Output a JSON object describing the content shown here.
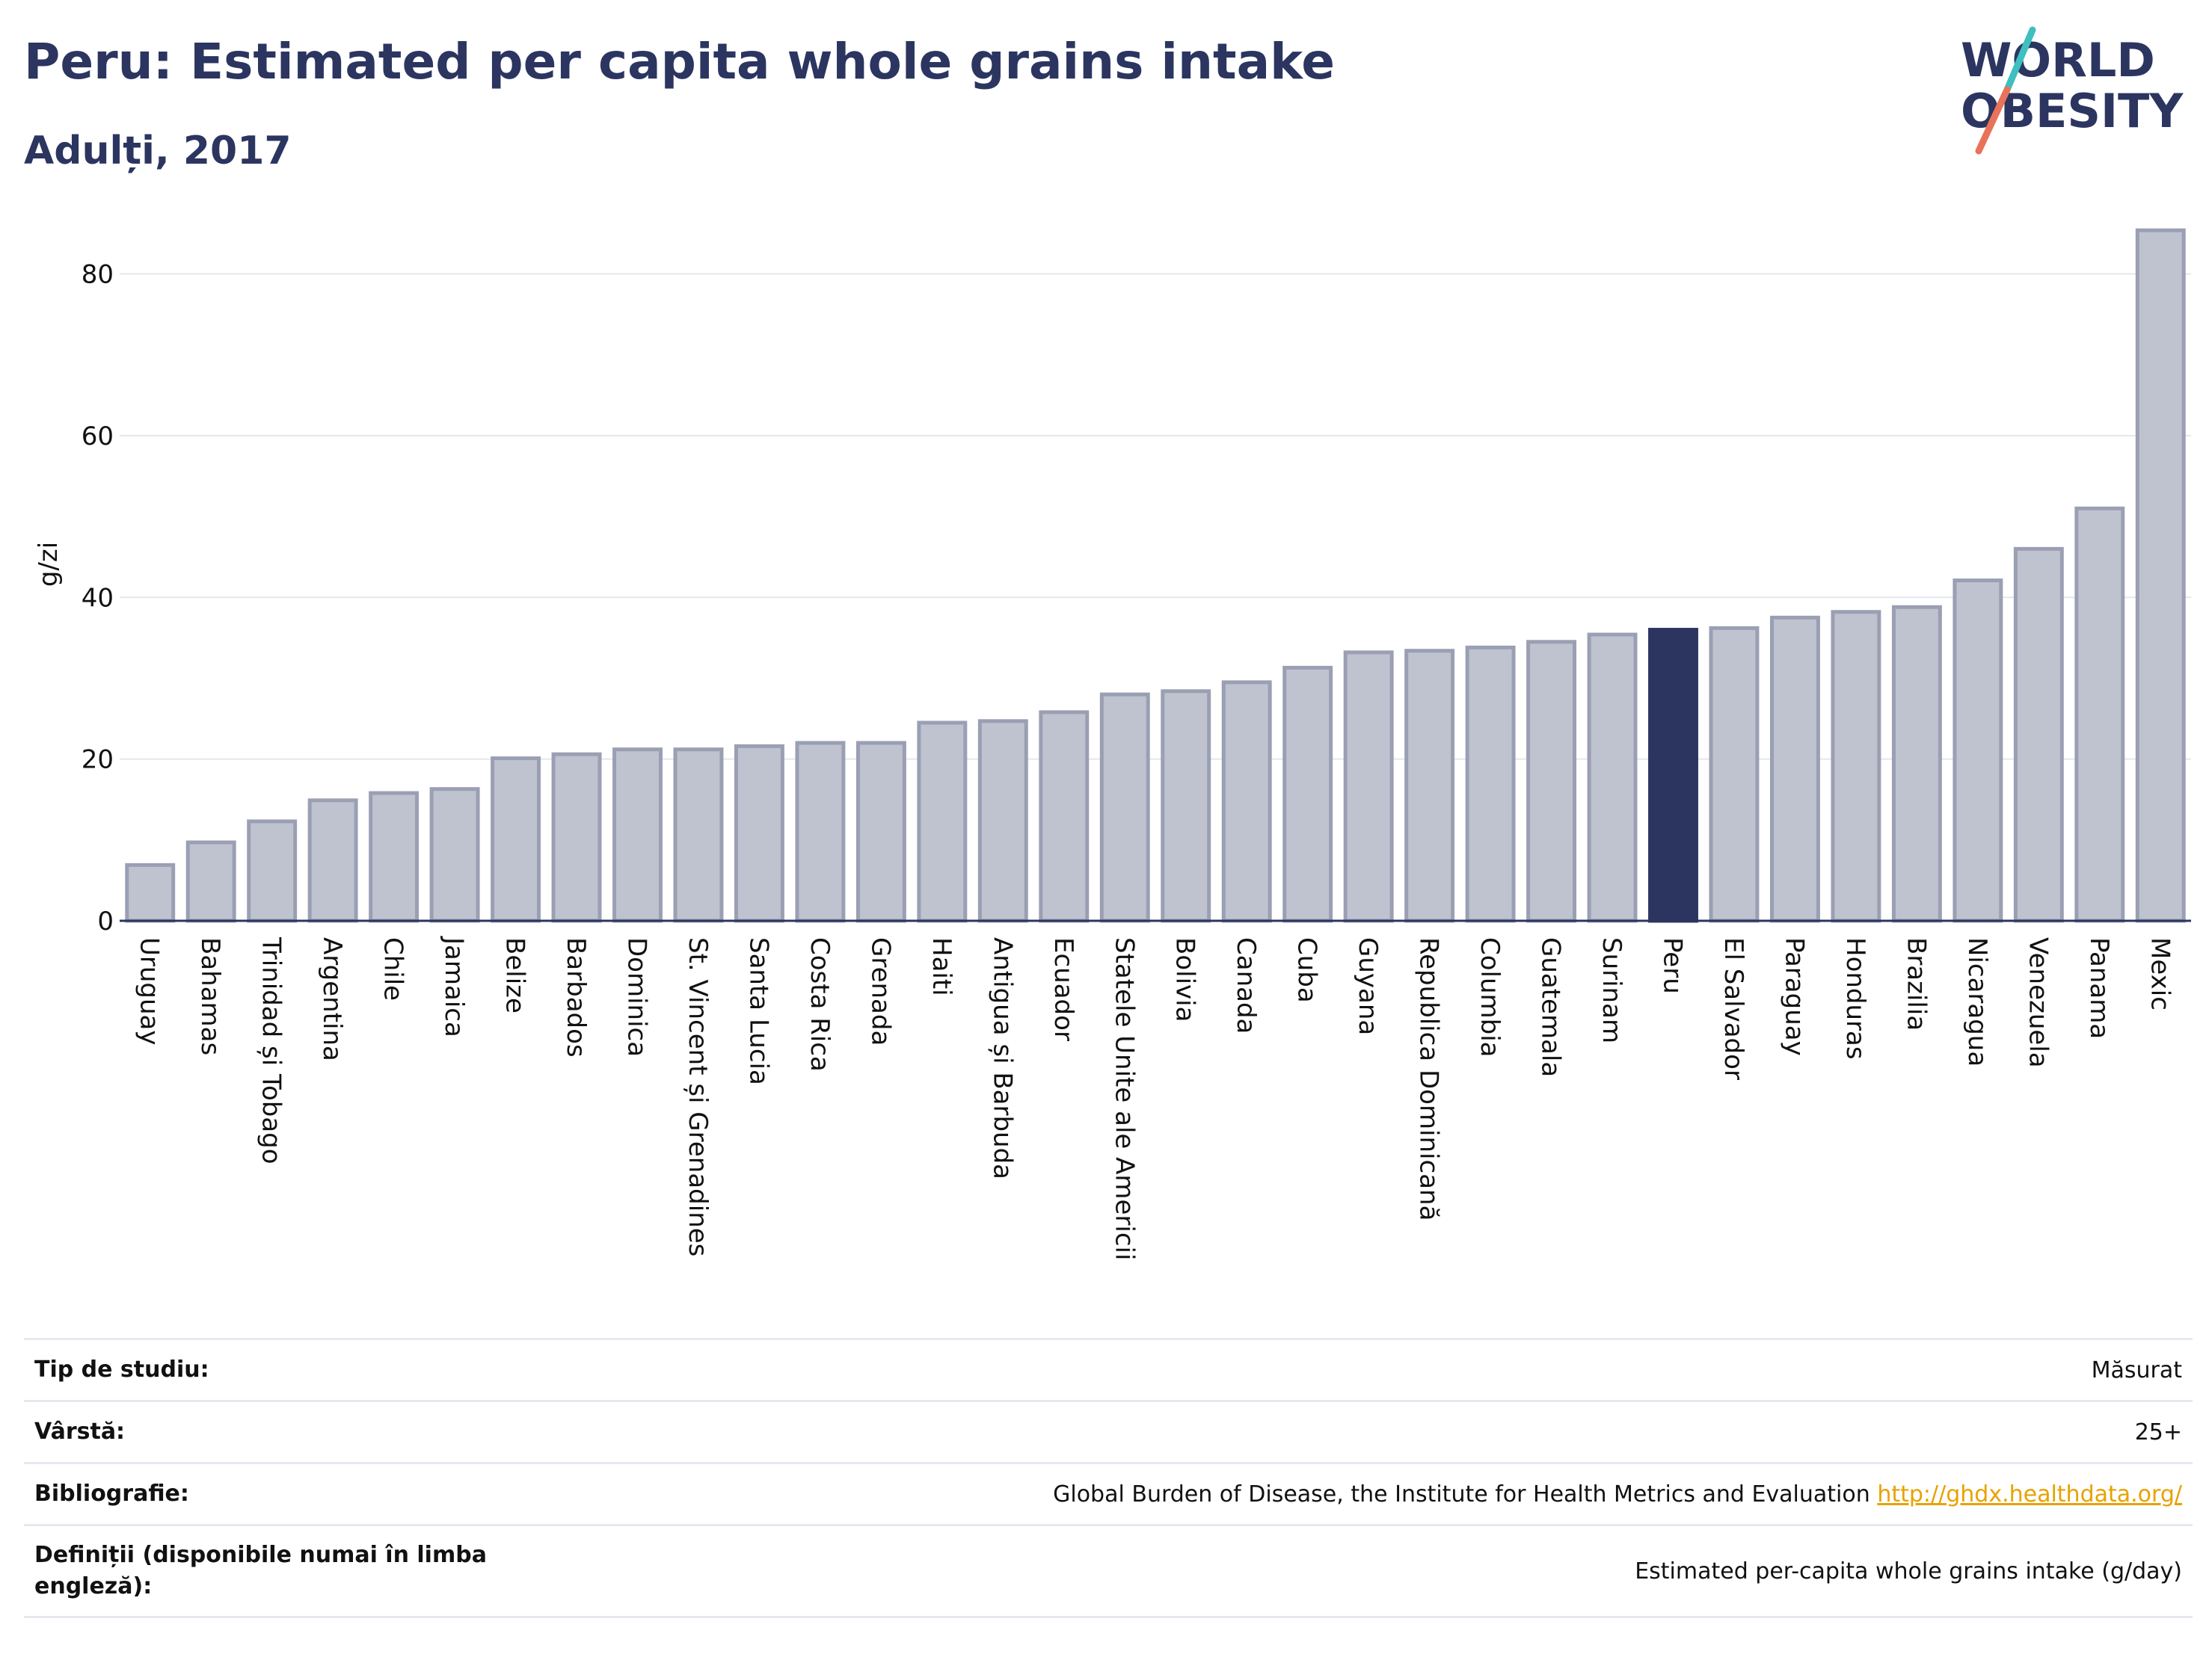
{
  "header": {
    "title": "Peru: Estimated per capita whole grains intake",
    "subtitle": "Adulți, 2017"
  },
  "logo": {
    "line1": "WORLD",
    "line2": "OBESITY",
    "colors": {
      "text": "#2b3560",
      "slash_teal": "#3fbfbf",
      "slash_coral": "#e8735a"
    }
  },
  "chart_data": {
    "type": "bar",
    "title": "Peru: Estimated per capita whole grains intake",
    "subtitle": "Adulți, 2017",
    "xlabel": "",
    "ylabel": "g/zi",
    "ylim": [
      0,
      88
    ],
    "yticks": [
      0,
      20,
      40,
      60,
      80
    ],
    "grid": true,
    "highlight": "Peru",
    "colors": {
      "bar": "#bfc3cf",
      "bar_edge": "#9a9fb3",
      "highlight": "#2b3560"
    },
    "categories": [
      "Uruguay",
      "Bahamas",
      "Trinidad și Tobago",
      "Argentina",
      "Chile",
      "Jamaica",
      "Belize",
      "Barbados",
      "Dominica",
      "St. Vincent și Grenadines",
      "Santa Lucia",
      "Costa Rica",
      "Grenada",
      "Haiti",
      "Antigua și Barbuda",
      "Ecuador",
      "Statele Unite ale Americii",
      "Bolivia",
      "Canada",
      "Cuba",
      "Guyana",
      "Republica Dominicană",
      "Columbia",
      "Guatemala",
      "Surinam",
      "Peru",
      "El Salvador",
      "Paraguay",
      "Honduras",
      "Brazilia",
      "Nicaragua",
      "Venezuela",
      "Panama",
      "Mexic"
    ],
    "values": [
      6.9,
      9.7,
      12.3,
      14.9,
      15.8,
      16.3,
      20.1,
      20.6,
      21.2,
      21.2,
      21.6,
      22.0,
      22.0,
      24.5,
      24.7,
      25.8,
      28.0,
      28.4,
      29.5,
      31.3,
      33.2,
      33.4,
      33.8,
      34.5,
      35.4,
      36.0,
      36.2,
      37.5,
      38.2,
      38.8,
      42.1,
      46.0,
      51.0,
      85.4
    ]
  },
  "info": {
    "rows": [
      {
        "label": "Tip de studiu:",
        "value": "Măsurat"
      },
      {
        "label": "Vârstă:",
        "value": "25+"
      },
      {
        "label": "Bibliografie:",
        "value": "Global Burden of Disease, the Institute for Health Metrics and Evaluation",
        "link": "http://ghdx.healthdata.org/"
      },
      {
        "label": "Definiții (disponibile numai în limba engleză):",
        "value": "Estimated per-capita whole grains intake (g/day)"
      }
    ]
  }
}
